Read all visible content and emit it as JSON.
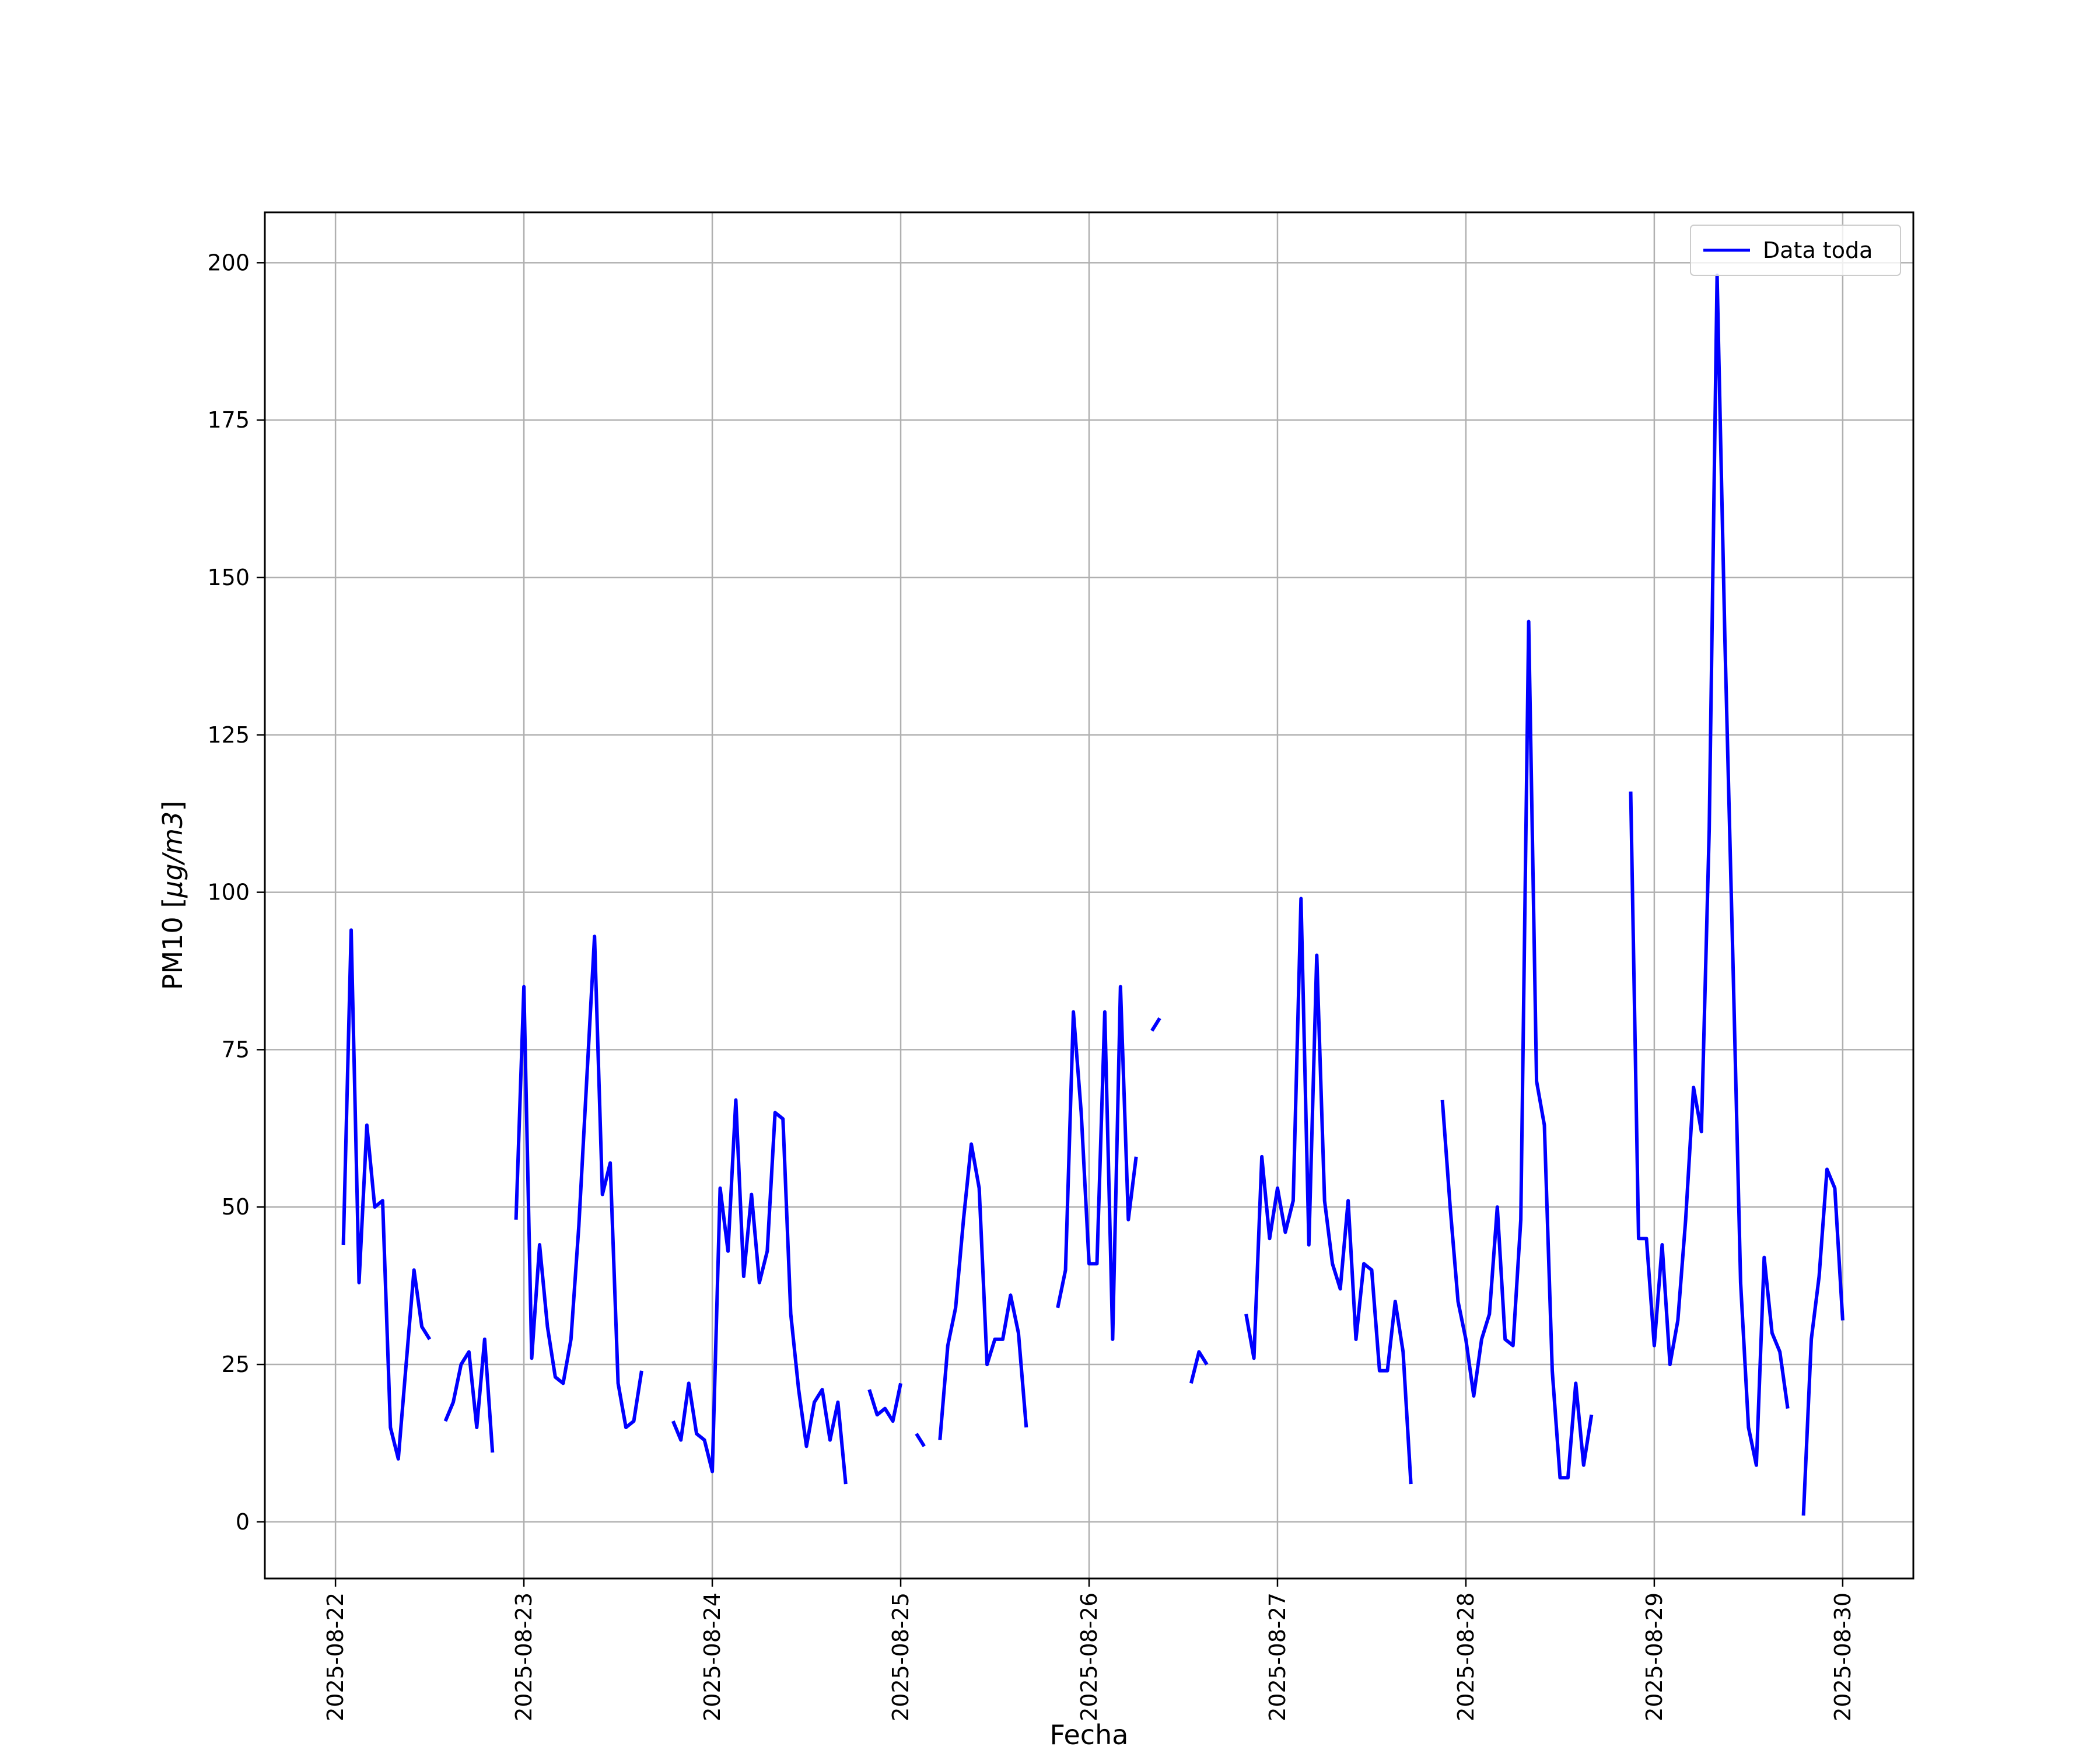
{
  "chart_data": {
    "type": "line",
    "xlabel": "Fecha",
    "ylabel": "PM10 [",
    "ylabel_math": "μg/m3",
    "ylabel_close": "]",
    "x_axis_type": "date",
    "xlim": [
      "2025-08-21 15:00",
      "2025-08-30 09:00"
    ],
    "ylim": [
      -9,
      208
    ],
    "x_ticks": [
      "2025-08-22",
      "2025-08-23",
      "2025-08-24",
      "2025-08-25",
      "2025-08-26",
      "2025-08-27",
      "2025-08-28",
      "2025-08-29",
      "2025-08-30"
    ],
    "y_ticks": [
      0,
      25,
      50,
      75,
      100,
      125,
      150,
      175,
      200
    ],
    "grid": true,
    "legend": {
      "position": "top-right",
      "entries": [
        "Data toda"
      ]
    },
    "colors": {
      "series": "#0000ff",
      "grid": "#b0b0b0",
      "frame": "#000000"
    },
    "series": [
      {
        "name": "Data toda",
        "segments": [
          [
            [
              "2025-08-22 01:00",
              44
            ],
            [
              "2025-08-22 02:00",
              94
            ],
            [
              "2025-08-22 03:00",
              38
            ],
            [
              "2025-08-22 04:00",
              63
            ],
            [
              "2025-08-22 05:00",
              50
            ],
            [
              "2025-08-22 06:00",
              51
            ],
            [
              "2025-08-22 07:00",
              15
            ],
            [
              "2025-08-22 08:00",
              10
            ],
            [
              "2025-08-22 09:00",
              25
            ],
            [
              "2025-08-22 10:00",
              40
            ],
            [
              "2025-08-22 11:00",
              31
            ],
            [
              "2025-08-22 12:00",
              29
            ]
          ],
          [
            [
              "2025-08-22 14:00",
              16
            ],
            [
              "2025-08-22 15:00",
              19
            ],
            [
              "2025-08-22 16:00",
              25
            ],
            [
              "2025-08-22 17:00",
              27
            ],
            [
              "2025-08-22 18:00",
              15
            ],
            [
              "2025-08-22 19:00",
              29
            ],
            [
              "2025-08-22 20:00",
              11
            ]
          ],
          [
            [
              "2025-08-22 23:00",
              48
            ],
            [
              "2025-08-23 00:00",
              85
            ],
            [
              "2025-08-23 01:00",
              26
            ],
            [
              "2025-08-23 02:00",
              44
            ],
            [
              "2025-08-23 03:00",
              31
            ],
            [
              "2025-08-23 04:00",
              23
            ],
            [
              "2025-08-23 05:00",
              22
            ],
            [
              "2025-08-23 06:00",
              29
            ],
            [
              "2025-08-23 07:00",
              47
            ],
            [
              "2025-08-23 08:00",
              70
            ],
            [
              "2025-08-23 09:00",
              93
            ],
            [
              "2025-08-23 10:00",
              52
            ],
            [
              "2025-08-23 11:00",
              57
            ],
            [
              "2025-08-23 12:00",
              22
            ],
            [
              "2025-08-23 13:00",
              15
            ],
            [
              "2025-08-23 14:00",
              16
            ],
            [
              "2025-08-23 15:00",
              24
            ]
          ],
          [
            [
              "2025-08-23 19:00",
              16
            ],
            [
              "2025-08-23 20:00",
              13
            ],
            [
              "2025-08-23 21:00",
              22
            ],
            [
              "2025-08-23 22:00",
              14
            ],
            [
              "2025-08-23 23:00",
              13
            ],
            [
              "2025-08-24 00:00",
              8
            ],
            [
              "2025-08-24 01:00",
              53
            ],
            [
              "2025-08-24 02:00",
              43
            ],
            [
              "2025-08-24 03:00",
              67
            ],
            [
              "2025-08-24 04:00",
              39
            ],
            [
              "2025-08-24 05:00",
              52
            ],
            [
              "2025-08-24 06:00",
              38
            ],
            [
              "2025-08-24 07:00",
              43
            ],
            [
              "2025-08-24 08:00",
              65
            ],
            [
              "2025-08-24 09:00",
              64
            ],
            [
              "2025-08-24 10:00",
              33
            ],
            [
              "2025-08-24 11:00",
              21
            ],
            [
              "2025-08-24 12:00",
              12
            ],
            [
              "2025-08-24 13:00",
              19
            ],
            [
              "2025-08-24 14:00",
              21
            ],
            [
              "2025-08-24 15:00",
              13
            ],
            [
              "2025-08-24 16:00",
              19
            ],
            [
              "2025-08-24 17:00",
              6
            ]
          ],
          [
            [
              "2025-08-24 20:00",
              21
            ],
            [
              "2025-08-24 21:00",
              17
            ],
            [
              "2025-08-24 22:00",
              18
            ],
            [
              "2025-08-24 23:00",
              16
            ],
            [
              "2025-08-25 00:00",
              22
            ]
          ],
          [
            [
              "2025-08-25 02:00",
              14
            ],
            [
              "2025-08-25 03:00",
              12
            ]
          ],
          [
            [
              "2025-08-25 05:00",
              13
            ],
            [
              "2025-08-25 06:00",
              28
            ],
            [
              "2025-08-25 07:00",
              34
            ],
            [
              "2025-08-25 08:00",
              48
            ],
            [
              "2025-08-25 09:00",
              60
            ],
            [
              "2025-08-25 10:00",
              53
            ],
            [
              "2025-08-25 11:00",
              25
            ],
            [
              "2025-08-25 12:00",
              29
            ],
            [
              "2025-08-25 13:00",
              29
            ],
            [
              "2025-08-25 14:00",
              36
            ],
            [
              "2025-08-25 15:00",
              30
            ],
            [
              "2025-08-25 16:00",
              15
            ]
          ],
          [
            [
              "2025-08-25 20:00",
              34
            ],
            [
              "2025-08-25 21:00",
              40
            ],
            [
              "2025-08-25 22:00",
              81
            ],
            [
              "2025-08-25 23:00",
              65
            ],
            [
              "2025-08-26 00:00",
              41
            ],
            [
              "2025-08-26 01:00",
              41
            ],
            [
              "2025-08-26 02:00",
              81
            ],
            [
              "2025-08-26 03:00",
              29
            ],
            [
              "2025-08-26 04:00",
              85
            ],
            [
              "2025-08-26 05:00",
              48
            ],
            [
              "2025-08-26 06:00",
              58
            ]
          ],
          [
            [
              "2025-08-26 08:00",
              78
            ],
            [
              "2025-08-26 09:00",
              80
            ]
          ],
          [
            [
              "2025-08-26 13:00",
              22
            ],
            [
              "2025-08-26 14:00",
              27
            ],
            [
              "2025-08-26 15:00",
              25
            ]
          ],
          [
            [
              "2025-08-26 20:00",
              33
            ],
            [
              "2025-08-26 21:00",
              26
            ],
            [
              "2025-08-26 22:00",
              58
            ],
            [
              "2025-08-26 23:00",
              45
            ],
            [
              "2025-08-27 00:00",
              53
            ],
            [
              "2025-08-27 01:00",
              46
            ],
            [
              "2025-08-27 02:00",
              51
            ],
            [
              "2025-08-27 03:00",
              99
            ],
            [
              "2025-08-27 04:00",
              44
            ],
            [
              "2025-08-27 05:00",
              90
            ],
            [
              "2025-08-27 06:00",
              51
            ],
            [
              "2025-08-27 07:00",
              41
            ],
            [
              "2025-08-27 08:00",
              37
            ],
            [
              "2025-08-27 09:00",
              51
            ],
            [
              "2025-08-27 10:00",
              29
            ],
            [
              "2025-08-27 11:00",
              41
            ],
            [
              "2025-08-27 12:00",
              40
            ],
            [
              "2025-08-27 13:00",
              24
            ],
            [
              "2025-08-27 14:00",
              24
            ],
            [
              "2025-08-27 15:00",
              35
            ],
            [
              "2025-08-27 16:00",
              27
            ],
            [
              "2025-08-27 17:00",
              6
            ]
          ],
          [
            [
              "2025-08-27 21:00",
              67
            ],
            [
              "2025-08-27 22:00",
              50
            ],
            [
              "2025-08-27 23:00",
              35
            ],
            [
              "2025-08-28 00:00",
              29
            ],
            [
              "2025-08-28 01:00",
              20
            ],
            [
              "2025-08-28 02:00",
              29
            ],
            [
              "2025-08-28 03:00",
              33
            ],
            [
              "2025-08-28 04:00",
              50
            ],
            [
              "2025-08-28 05:00",
              29
            ],
            [
              "2025-08-28 06:00",
              28
            ],
            [
              "2025-08-28 07:00",
              48
            ],
            [
              "2025-08-28 08:00",
              143
            ],
            [
              "2025-08-28 09:00",
              70
            ],
            [
              "2025-08-28 10:00",
              63
            ],
            [
              "2025-08-28 11:00",
              24
            ],
            [
              "2025-08-28 12:00",
              7
            ],
            [
              "2025-08-28 13:00",
              7
            ],
            [
              "2025-08-28 14:00",
              22
            ],
            [
              "2025-08-28 15:00",
              9
            ],
            [
              "2025-08-28 16:00",
              17
            ]
          ],
          [
            [
              "2025-08-28 21:00",
              116
            ],
            [
              "2025-08-28 22:00",
              45
            ],
            [
              "2025-08-28 23:00",
              45
            ],
            [
              "2025-08-29 00:00",
              28
            ],
            [
              "2025-08-29 01:00",
              44
            ],
            [
              "2025-08-29 02:00",
              25
            ],
            [
              "2025-08-29 03:00",
              32
            ],
            [
              "2025-08-29 04:00",
              48
            ],
            [
              "2025-08-29 05:00",
              69
            ],
            [
              "2025-08-29 06:00",
              62
            ],
            [
              "2025-08-29 07:00",
              110
            ],
            [
              "2025-08-29 08:00",
              198
            ],
            [
              "2025-08-29 09:00",
              140
            ],
            [
              "2025-08-29 10:00",
              90
            ],
            [
              "2025-08-29 11:00",
              38
            ],
            [
              "2025-08-29 12:00",
              15
            ],
            [
              "2025-08-29 13:00",
              9
            ],
            [
              "2025-08-29 14:00",
              42
            ],
            [
              "2025-08-29 15:00",
              30
            ],
            [
              "2025-08-29 16:00",
              27
            ],
            [
              "2025-08-29 17:00",
              18
            ]
          ],
          [
            [
              "2025-08-29 19:00",
              1
            ],
            [
              "2025-08-29 20:00",
              29
            ],
            [
              "2025-08-29 21:00",
              39
            ],
            [
              "2025-08-29 22:00",
              56
            ],
            [
              "2025-08-29 23:00",
              53
            ],
            [
              "2025-08-30 00:00",
              32
            ]
          ]
        ]
      }
    ]
  }
}
